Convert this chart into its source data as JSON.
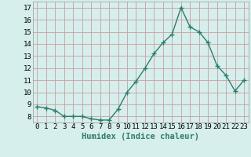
{
  "x": [
    0,
    1,
    2,
    3,
    4,
    5,
    6,
    7,
    8,
    9,
    10,
    11,
    12,
    13,
    14,
    15,
    16,
    17,
    18,
    19,
    20,
    21,
    22,
    23
  ],
  "y": [
    8.8,
    8.7,
    8.5,
    8.0,
    8.0,
    8.0,
    7.8,
    7.7,
    7.7,
    8.6,
    10.0,
    10.9,
    12.0,
    13.2,
    14.1,
    14.8,
    17.0,
    15.4,
    15.0,
    14.1,
    12.2,
    11.4,
    10.1,
    11.0
  ],
  "line_color": "#2d7d6e",
  "bg_color": "#d6eeec",
  "grid_color": "#c8a0a0",
  "xlabel": "Humidex (Indice chaleur)",
  "ylabel_ticks": [
    8,
    9,
    10,
    11,
    12,
    13,
    14,
    15,
    16,
    17
  ],
  "ylim": [
    7.5,
    17.5
  ],
  "xlim": [
    -0.5,
    23.5
  ],
  "tick_fontsize": 6.5,
  "xlabel_fontsize": 7.5
}
